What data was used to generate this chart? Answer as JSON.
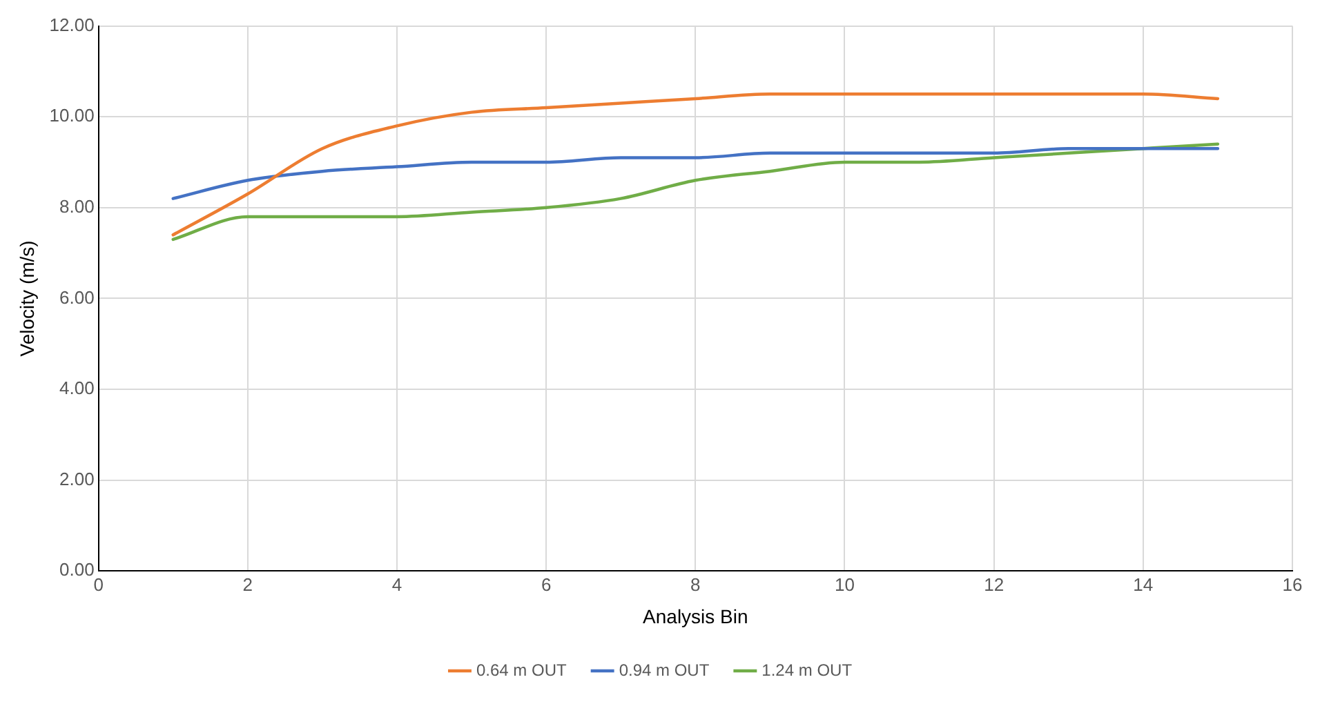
{
  "chart_data": {
    "type": "line",
    "xlabel": "Analysis Bin",
    "ylabel": "Velocity (m/s)",
    "x": [
      1,
      2,
      3,
      4,
      5,
      6,
      7,
      8,
      9,
      10,
      11,
      12,
      13,
      14,
      15
    ],
    "series": [
      {
        "name": "0.64 m OUT",
        "color": "#ed7d31",
        "values": [
          7.4,
          8.3,
          9.3,
          9.8,
          10.1,
          10.2,
          10.3,
          10.4,
          10.5,
          10.5,
          10.5,
          10.5,
          10.5,
          10.5,
          10.4
        ]
      },
      {
        "name": "0.94 m OUT",
        "color": "#4472c4",
        "values": [
          8.2,
          8.6,
          8.8,
          8.9,
          9.0,
          9.0,
          9.1,
          9.1,
          9.2,
          9.2,
          9.2,
          9.2,
          9.3,
          9.3,
          9.3
        ]
      },
      {
        "name": "1.24 m OUT",
        "color": "#70ad47",
        "values": [
          7.3,
          7.8,
          7.8,
          7.8,
          7.9,
          8.0,
          8.2,
          8.6,
          8.8,
          9.0,
          9.0,
          9.1,
          9.2,
          9.3,
          9.4
        ]
      }
    ],
    "xlim": [
      0,
      16
    ],
    "xticks": [
      0,
      2,
      4,
      6,
      8,
      10,
      12,
      14,
      16
    ],
    "ylim": [
      0,
      12
    ],
    "yticks": [
      {
        "value": 0,
        "label": "0.00"
      },
      {
        "value": 2,
        "label": "2.00"
      },
      {
        "value": 4,
        "label": "4.00"
      },
      {
        "value": 6,
        "label": "6.00"
      },
      {
        "value": 8,
        "label": "8.00"
      },
      {
        "value": 10,
        "label": "10.00"
      },
      {
        "value": 12,
        "label": "12.00"
      }
    ],
    "grid": true,
    "legend": "bottom",
    "marker": "none",
    "line_style": "solid"
  }
}
